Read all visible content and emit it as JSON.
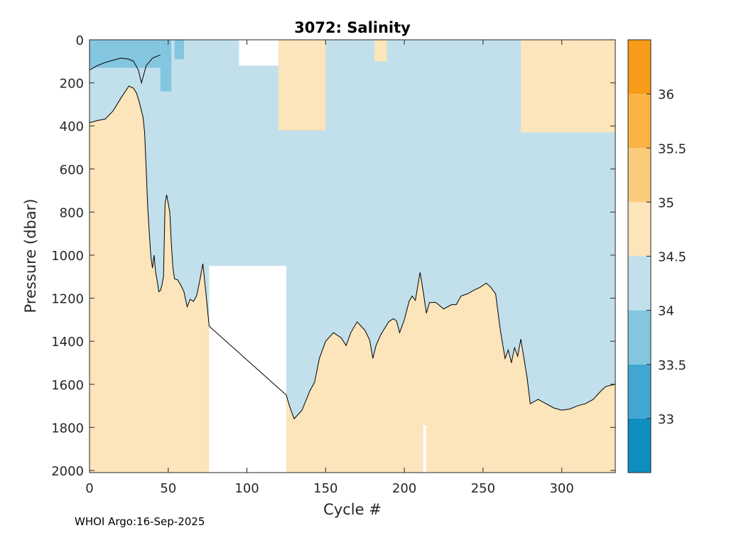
{
  "chart_data": {
    "type": "heatmap",
    "title": "3072:  Salinity",
    "xlabel": "Cycle #",
    "ylabel": "Pressure (dbar)",
    "xlim": [
      0,
      334
    ],
    "ylim": [
      0,
      2010
    ],
    "y_reversed": true,
    "xticks": [
      0,
      50,
      100,
      150,
      200,
      250,
      300
    ],
    "yticks": [
      0,
      200,
      400,
      600,
      800,
      1000,
      1200,
      1400,
      1600,
      1800,
      2000
    ],
    "colorbar": {
      "range": [
        32.5,
        36.5
      ],
      "ticks": [
        "33",
        "33.5",
        "34",
        "34.5",
        "35",
        "35.5",
        "36"
      ],
      "levels": [
        {
          "from": 32.5,
          "to": 33.0,
          "color": "#0f8ec0"
        },
        {
          "from": 33.0,
          "to": 33.5,
          "color": "#42a7d0"
        },
        {
          "from": 33.5,
          "to": 34.0,
          "color": "#84c6e0"
        },
        {
          "from": 34.0,
          "to": 34.5,
          "color": "#c1e0ec"
        },
        {
          "from": 34.5,
          "to": 35.0,
          "color": "#fce4bb"
        },
        {
          "from": 35.0,
          "to": 35.5,
          "color": "#fbcb7c"
        },
        {
          "from": 35.5,
          "to": 36.0,
          "color": "#f9b445"
        },
        {
          "from": 36.0,
          "to": 36.5,
          "color": "#f69c1a"
        }
      ]
    },
    "contours": [
      {
        "name": "34.5 lower boundary (deep salty water below)",
        "points": [
          [
            0,
            385
          ],
          [
            5,
            375
          ],
          [
            10,
            368
          ],
          [
            15,
            330
          ],
          [
            20,
            270
          ],
          [
            25,
            215
          ],
          [
            28,
            225
          ],
          [
            30,
            250
          ],
          [
            32,
            300
          ],
          [
            34,
            360
          ],
          [
            35,
            430
          ],
          [
            36,
            600
          ],
          [
            37,
            780
          ],
          [
            38,
            900
          ],
          [
            39,
            1010
          ],
          [
            40,
            1060
          ],
          [
            41,
            1000
          ],
          [
            42,
            1080
          ],
          [
            43,
            1120
          ],
          [
            44,
            1170
          ],
          [
            45,
            1165
          ],
          [
            46,
            1140
          ],
          [
            47,
            1100
          ],
          [
            48,
            760
          ],
          [
            49,
            720
          ],
          [
            50,
            760
          ],
          [
            51,
            800
          ],
          [
            52,
            950
          ],
          [
            53,
            1060
          ],
          [
            54,
            1110
          ],
          [
            56,
            1115
          ],
          [
            58,
            1140
          ],
          [
            60,
            1170
          ],
          [
            62,
            1240
          ],
          [
            64,
            1205
          ],
          [
            66,
            1215
          ],
          [
            68,
            1190
          ],
          [
            70,
            1120
          ],
          [
            72,
            1040
          ],
          [
            74,
            1180
          ],
          [
            76,
            1330
          ],
          [
            125,
            1650
          ],
          [
            127,
            1700
          ],
          [
            130,
            1760
          ],
          [
            135,
            1720
          ],
          [
            140,
            1630
          ],
          [
            143,
            1590
          ],
          [
            146,
            1480
          ],
          [
            150,
            1400
          ],
          [
            155,
            1360
          ],
          [
            160,
            1385
          ],
          [
            163,
            1420
          ],
          [
            166,
            1360
          ],
          [
            170,
            1310
          ],
          [
            175,
            1350
          ],
          [
            178,
            1395
          ],
          [
            180,
            1480
          ],
          [
            182,
            1420
          ],
          [
            185,
            1370
          ],
          [
            190,
            1310
          ],
          [
            193,
            1295
          ],
          [
            195,
            1305
          ],
          [
            197,
            1360
          ],
          [
            200,
            1300
          ],
          [
            203,
            1215
          ],
          [
            205,
            1190
          ],
          [
            207,
            1210
          ],
          [
            210,
            1080
          ],
          [
            212,
            1170
          ],
          [
            214,
            1270
          ],
          [
            216,
            1220
          ],
          [
            220,
            1220
          ],
          [
            225,
            1250
          ],
          [
            230,
            1230
          ],
          [
            233,
            1230
          ],
          [
            236,
            1190
          ],
          [
            240,
            1180
          ],
          [
            245,
            1160
          ],
          [
            248,
            1150
          ],
          [
            252,
            1130
          ],
          [
            255,
            1150
          ],
          [
            258,
            1180
          ],
          [
            261,
            1350
          ],
          [
            264,
            1480
          ],
          [
            266,
            1440
          ],
          [
            268,
            1500
          ],
          [
            270,
            1430
          ],
          [
            272,
            1470
          ],
          [
            274,
            1390
          ],
          [
            276,
            1480
          ],
          [
            278,
            1570
          ],
          [
            280,
            1690
          ],
          [
            285,
            1670
          ],
          [
            290,
            1690
          ],
          [
            295,
            1710
          ],
          [
            300,
            1720
          ],
          [
            305,
            1715
          ],
          [
            310,
            1700
          ],
          [
            315,
            1690
          ],
          [
            320,
            1670
          ],
          [
            325,
            1630
          ],
          [
            328,
            1610
          ],
          [
            334,
            1600
          ]
        ]
      },
      {
        "name": "34 contour near surface (left)",
        "points": [
          [
            0,
            140
          ],
          [
            5,
            120
          ],
          [
            10,
            105
          ],
          [
            15,
            95
          ],
          [
            20,
            85
          ],
          [
            25,
            90
          ],
          [
            28,
            100
          ],
          [
            31,
            140
          ],
          [
            33,
            200
          ],
          [
            36,
            120
          ],
          [
            40,
            85
          ],
          [
            45,
            70
          ]
        ]
      }
    ],
    "missing_regions": [
      {
        "x_from": 76,
        "x_to": 125,
        "p_from": 1050,
        "p_to": 2010,
        "note": "no data"
      },
      {
        "x_from": 95,
        "x_to": 120,
        "p_from": 0,
        "p_to": 120,
        "note": "no data"
      },
      {
        "x_from": 212,
        "x_to": 214,
        "p_from": 1790,
        "p_to": 2010,
        "note": "no data"
      }
    ],
    "salty_patches_34_5_35": [
      {
        "x_from": 120,
        "x_to": 150,
        "p_from": 0,
        "p_to": 420
      },
      {
        "x_from": 274,
        "x_to": 334,
        "p_from": 0,
        "p_to": 430
      },
      {
        "x_from": 181,
        "x_to": 189,
        "p_from": 0,
        "p_to": 100
      }
    ],
    "fresh_patches_33_5_34": [
      {
        "x_from": 0,
        "x_to": 45,
        "p_from": 0,
        "p_to": 130
      },
      {
        "x_from": 45,
        "x_to": 52,
        "p_from": 0,
        "p_to": 240
      },
      {
        "x_from": 54,
        "x_to": 60,
        "p_from": 0,
        "p_to": 90
      }
    ]
  },
  "footer": "WHOI Argo:16-Sep-2025"
}
